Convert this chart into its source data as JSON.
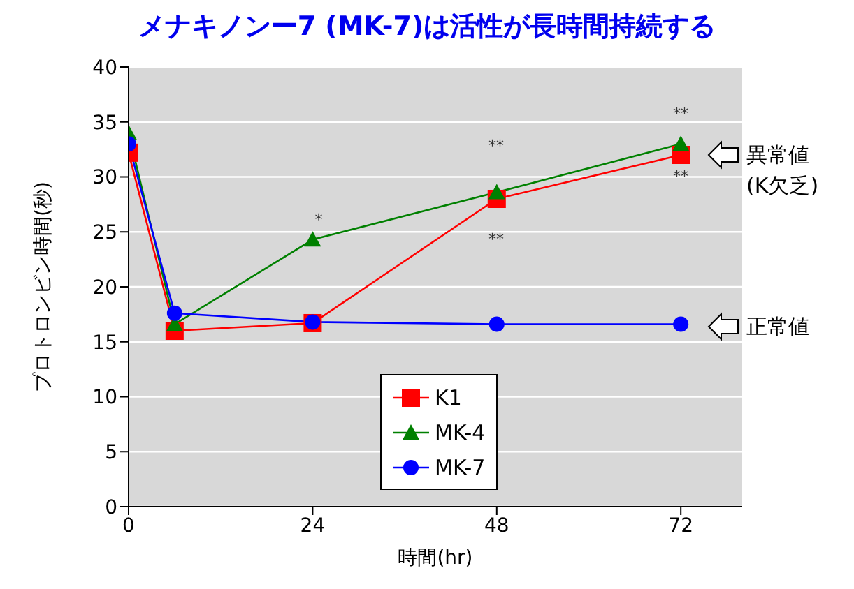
{
  "chart_data": {
    "type": "line",
    "title": "メナキノンー7 (MK-7)は活性が長時間持続する",
    "xlabel": "時間(hr)",
    "ylabel": "プロトロンビン時間(秒)",
    "xlim": [
      0,
      80
    ],
    "xticks": [
      0,
      24,
      48,
      72
    ],
    "ylim": [
      0,
      40
    ],
    "yticks": [
      0,
      5,
      10,
      15,
      20,
      25,
      30,
      35,
      40
    ],
    "grid": "y",
    "legend": "bottom",
    "series": [
      {
        "name": "K1",
        "color": "#ff0000",
        "marker": "square",
        "x": [
          0,
          6,
          24,
          48,
          72
        ],
        "values": [
          32.2,
          16,
          16.7,
          28,
          32
        ]
      },
      {
        "name": "MK-4",
        "color": "#008000",
        "marker": "triangle",
        "x": [
          0,
          6,
          24,
          48,
          72
        ],
        "values": [
          34,
          16.6,
          24.3,
          28.6,
          33
        ]
      },
      {
        "name": "MK-7",
        "color": "#0000ff",
        "marker": "circle",
        "x": [
          0,
          6,
          24,
          48,
          72
        ],
        "values": [
          33,
          17.6,
          16.8,
          16.6,
          16.6
        ]
      }
    ],
    "annotations": [
      "*",
      "**",
      "**",
      "**",
      "**",
      "異常値\n(K欠乏)",
      "正常値"
    ]
  }
}
